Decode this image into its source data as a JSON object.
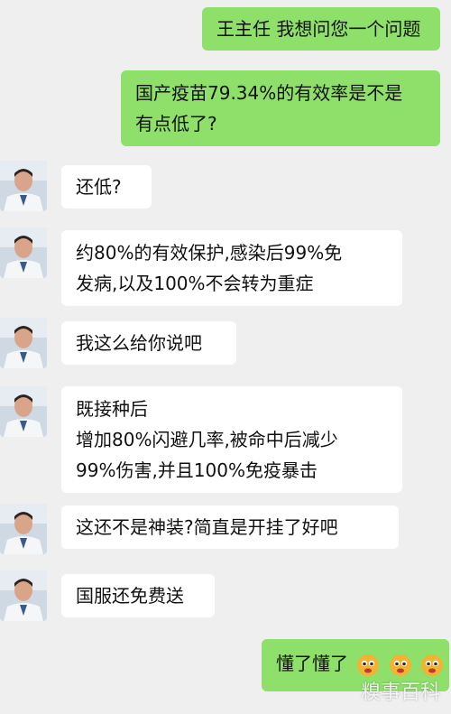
{
  "conversation": {
    "messages": [
      {
        "from": "me",
        "lines": [
          "王主任 我想问您一个问题"
        ]
      },
      {
        "from": "me",
        "lines": [
          "国产疫苗79.34%的有效率是不是",
          "有点低了?"
        ]
      },
      {
        "from": "other",
        "lines": [
          "还低?"
        ]
      },
      {
        "from": "other",
        "lines": [
          "约80%的有效保护,感染后99%免",
          "发病,以及100%不会转为重症"
        ]
      },
      {
        "from": "other",
        "lines": [
          "我这么给你说吧"
        ]
      },
      {
        "from": "other",
        "lines": [
          "既接种后",
          "增加80%闪避几率,被命中后减少",
          "99%伤害,并且100%免疫暴击"
        ]
      },
      {
        "from": "other",
        "lines": [
          "这还不是神装?简直是开挂了好吧"
        ]
      },
      {
        "from": "other",
        "lines": [
          "国服还免费送"
        ]
      },
      {
        "from": "me",
        "lines": [
          "懂了懂了"
        ],
        "emoji_count": 3
      }
    ]
  },
  "colors": {
    "me_bubble": "#8fe06a",
    "other_bubble": "#ffffff",
    "background": "#efefef"
  },
  "watermark": {
    "text": "糗事百科"
  }
}
